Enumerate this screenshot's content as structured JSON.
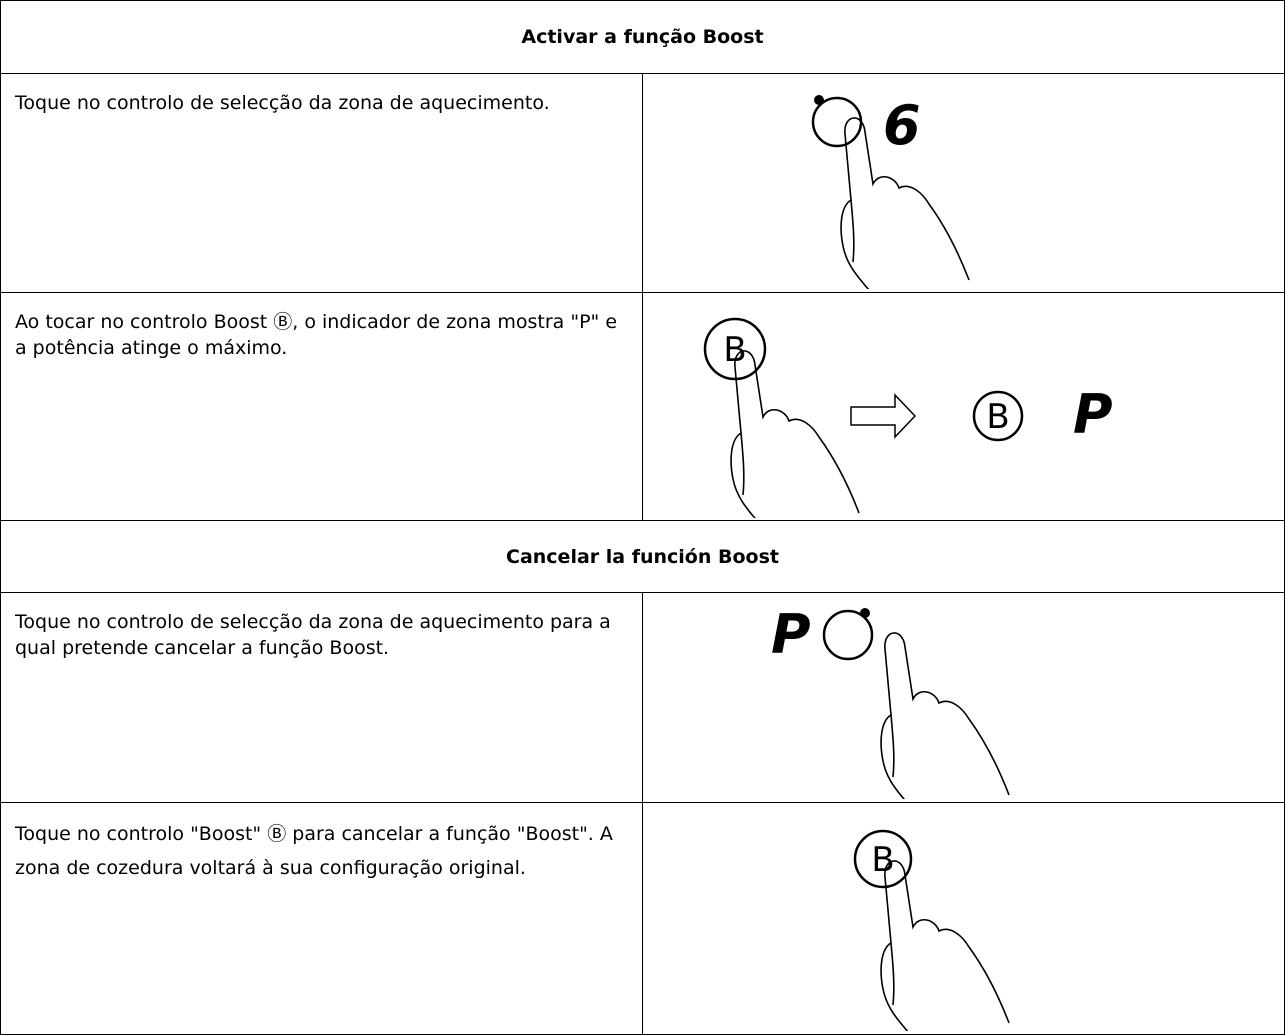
{
  "sections": [
    {
      "title": "Activar a função Boost",
      "steps": [
        {
          "text": "Toque no controlo de selecção da zona de aquecimento.",
          "labels": [
            "6"
          ]
        },
        {
          "text": "Ao tocar no controlo Boost Ⓑ, o indicador de zona mostra \"P\" e a potência atinge o máximo.",
          "labels": [
            "B",
            "B",
            "P"
          ]
        }
      ]
    },
    {
      "title": "Cancelar la función Boost",
      "steps": [
        {
          "text": "Toque no controlo de selecção da zona de aquecimento para a qual pretende cancelar a função Boost.",
          "labels": [
            "P"
          ]
        },
        {
          "text": "Toque no controlo \"Boost\" Ⓑ para cancelar a função \"Boost\". A zona de cozedura voltará à sua configuração original.",
          "labels": [
            "B"
          ]
        }
      ]
    }
  ]
}
